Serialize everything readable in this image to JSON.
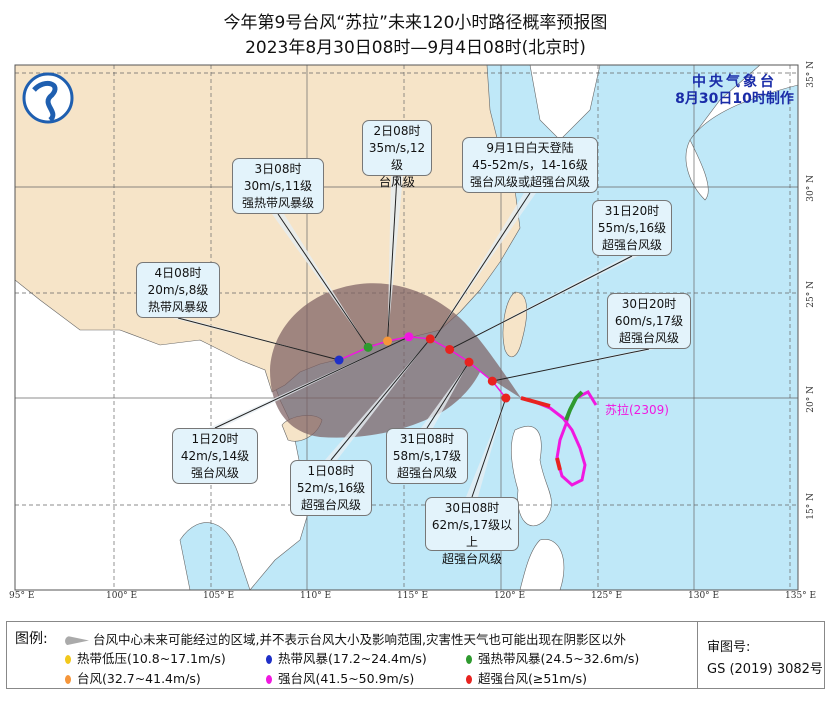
{
  "title": "今年第9号台风“苏拉”未来120小时路径概率预报图",
  "subtitle": "2023年8月30日08时—9月4日08时(北京时)",
  "agency": {
    "name": "中央气象台",
    "issued": "8月30日10时制作"
  },
  "typhoon_label": "苏拉(2309)",
  "lon_ticks": [
    "95° E",
    "100° E",
    "105° E",
    "110° E",
    "115° E",
    "120° E",
    "125° E",
    "130° E",
    "135° E"
  ],
  "lat_ticks": [
    "35° N",
    "30° N",
    "25° N",
    "20° N",
    "15° N"
  ],
  "forecast_points": [
    {
      "time": "30日08时",
      "lon": 120.2,
      "lat": 20.0,
      "text": [
        "30日08时",
        "62m/s,17级以上",
        "超强台风级"
      ],
      "color": "#e8231f"
    },
    {
      "time": "30日20时",
      "lon": 119.5,
      "lat": 20.8,
      "text": [
        "30日20时",
        "60m/s,17级",
        "超强台风级"
      ],
      "color": "#e8231f"
    },
    {
      "time": "31日08时",
      "lon": 118.3,
      "lat": 21.7,
      "text": [
        "31日08时",
        "58m/s,17级",
        "超强台风级"
      ],
      "color": "#e8231f"
    },
    {
      "time": "31日20时",
      "lon": 117.3,
      "lat": 22.3,
      "text": [
        "31日20时",
        "55m/s,16级",
        "超强台风级"
      ],
      "color": "#e8231f"
    },
    {
      "time": "1日08时",
      "lon": 116.3,
      "lat": 22.8,
      "text": [
        "1日08时",
        "52m/s,16级",
        "超强台风级"
      ],
      "color": "#e8231f"
    },
    {
      "time": "1日20时",
      "lon": 115.2,
      "lat": 22.9,
      "text": [
        "1日20时",
        "42m/s,14级",
        "强台风级"
      ],
      "color": "#f018e0"
    },
    {
      "time": "2日08时",
      "lon": 114.1,
      "lat": 22.7,
      "text": [
        "2日08时",
        "35m/s,12级",
        "台风级"
      ],
      "color": "#f5963a"
    },
    {
      "time": "3日08时",
      "lon": 113.1,
      "lat": 22.4,
      "text": [
        "3日08时",
        "30m/s,11级",
        "强热带风暴级"
      ],
      "color": "#2f9a2f"
    },
    {
      "time": "4日08时",
      "lon": 111.6,
      "lat": 21.8,
      "text": [
        "4日08时",
        "20m/s,8级",
        "热带风暴级"
      ],
      "color": "#1f2fc8"
    }
  ],
  "landfall": [
    "9月1日白天登陆",
    "45-52m/s，14-16级",
    "强台风级或超强台风级"
  ],
  "legend": {
    "label": "图例:",
    "cone": "台风中心未来可能经过的区域,并不表示台风大小及影响范围,灾害性天气也可能出现在阴影区以外",
    "items": [
      {
        "label": "热带低压(10.8~17.1m/s)",
        "color": "#f2c81c"
      },
      {
        "label": "热带风暴(17.2~24.4m/s)",
        "color": "#1f2fc8"
      },
      {
        "label": "强热带风暴(24.5~32.6m/s)",
        "color": "#2f9a2f"
      },
      {
        "label": "台风(32.7~41.4m/s)",
        "color": "#f5963a"
      },
      {
        "label": "强台风(41.5~50.9m/s)",
        "color": "#f018e0"
      },
      {
        "label": "超强台风(≥51m/s)",
        "color": "#e8231f"
      }
    ],
    "review_label": "审图号:",
    "review_number": "GS (2019) 3082号"
  },
  "colors": {
    "sea": "#bfe8f8",
    "china": "#f6e4c8",
    "other_land": "#ffffff",
    "cone": "#8a6f72"
  }
}
